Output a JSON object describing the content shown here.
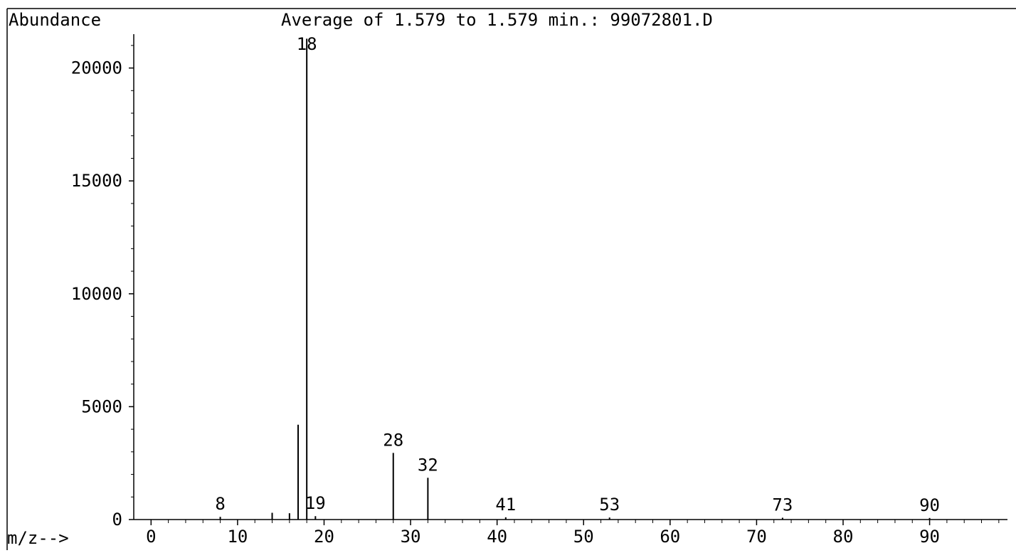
{
  "chart_data": {
    "type": "bar",
    "title": "Average of 1.579 to 1.579 min.: 99072801.D",
    "ylabel": "Abundance",
    "xlabel": "m/z-->",
    "xlim": [
      -2,
      99
    ],
    "ylim": [
      0,
      21500
    ],
    "x_ticks": [
      0,
      10,
      20,
      30,
      40,
      50,
      60,
      70,
      80,
      90
    ],
    "y_ticks": [
      0,
      5000,
      10000,
      15000,
      20000
    ],
    "grid": false,
    "peaks": [
      {
        "mz": 8,
        "abundance": 120
      },
      {
        "mz": 14,
        "abundance": 300
      },
      {
        "mz": 16,
        "abundance": 280
      },
      {
        "mz": 17,
        "abundance": 4200
      },
      {
        "mz": 18,
        "abundance": 21300
      },
      {
        "mz": 19,
        "abundance": 150
      },
      {
        "mz": 28,
        "abundance": 2950
      },
      {
        "mz": 32,
        "abundance": 1850
      },
      {
        "mz": 41,
        "abundance": 100
      },
      {
        "mz": 53,
        "abundance": 90
      },
      {
        "mz": 73,
        "abundance": 80
      },
      {
        "mz": 90,
        "abundance": 70
      }
    ],
    "peak_labels": [
      {
        "text": "8",
        "mz": 8,
        "abundance": 120
      },
      {
        "text": "18",
        "mz": 18,
        "abundance": 21300
      },
      {
        "text": "19",
        "mz": 19,
        "abundance": 150
      },
      {
        "text": "28",
        "mz": 28,
        "abundance": 2950
      },
      {
        "text": "32",
        "mz": 32,
        "abundance": 1850
      },
      {
        "text": "41",
        "mz": 41,
        "abundance": 100
      },
      {
        "text": "53",
        "mz": 53,
        "abundance": 90
      },
      {
        "text": "73",
        "mz": 73,
        "abundance": 80
      },
      {
        "text": "90",
        "mz": 90,
        "abundance": 70
      }
    ]
  }
}
